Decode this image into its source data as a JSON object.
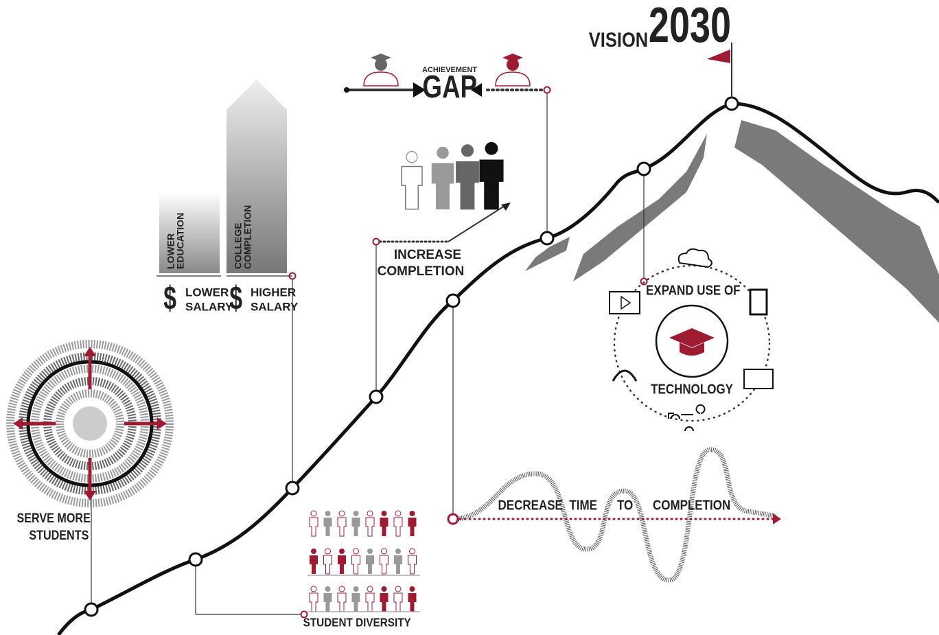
{
  "header": {
    "vision": "VISION",
    "year": "2030"
  },
  "gap": {
    "label": "ACHIEVEMENT",
    "title": "GAP"
  },
  "education_bars": [
    [
      "LOWER",
      "EDUCATION"
    ],
    [
      "COLLEGE",
      "COMPLETION"
    ]
  ],
  "salaries": [
    {
      "symbol": "$",
      "lines": [
        "LOWER",
        "SALARY"
      ]
    },
    {
      "symbol": "$",
      "lines": [
        "HIGHER",
        "SALARY"
      ]
    }
  ],
  "completion": [
    "INCREASE",
    "COMPLETION"
  ],
  "technology": {
    "top": "EXPAND USE OF",
    "bottom": "TECHNOLOGY"
  },
  "time": [
    "DECREASE",
    "TIME",
    "TO",
    "COMPLETION"
  ],
  "students": [
    "SERVE MORE",
    "STUDENTS"
  ],
  "diversity": "STUDENT DIVERSITY"
}
